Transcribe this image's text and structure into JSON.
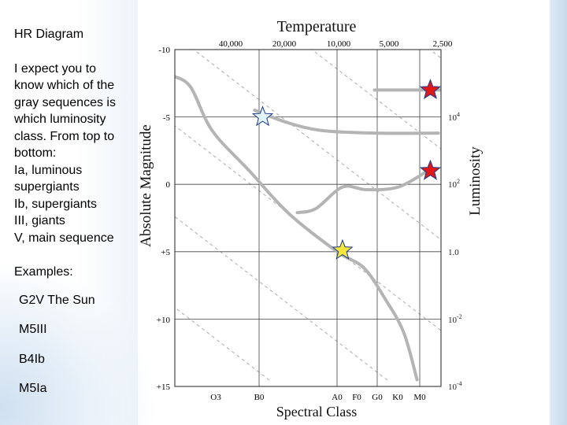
{
  "slide": {
    "title": "HR Diagram",
    "body_lines": [
      "I expect you to",
      "know which of the",
      "gray sequences is",
      "which luminosity",
      "class. From top to",
      "bottom:",
      "Ia, luminous",
      "supergiants",
      "Ib, supergiants",
      "III, giants",
      "V, main sequence"
    ],
    "examples_label": "Examples:",
    "examples": [
      "G2V The Sun",
      "M5III",
      "B4Ib",
      "M5Ia"
    ]
  },
  "chart_data": {
    "type": "scatter",
    "title": "Temperature",
    "xlabel": "Spectral Class",
    "ylabel": "Absolute Magnitude",
    "y2label": "Luminosity",
    "spectral_classes": [
      "O3",
      "B0",
      "A0",
      "F0",
      "G0",
      "K0",
      "M0"
    ],
    "temperature_ticks": [
      "40,000",
      "20,000",
      "10,000",
      "5,000",
      "2,500"
    ],
    "magnitude_ticks": [
      "-10",
      "-5",
      "0",
      "+5",
      "+10",
      "+15"
    ],
    "luminosity_ticks": [
      {
        "base": "10",
        "exp": "4"
      },
      {
        "base": "10",
        "exp": "2"
      },
      {
        "base": "1.0",
        "exp": ""
      },
      {
        "base": "10",
        "exp": "-2"
      },
      {
        "base": "10",
        "exp": "-4"
      }
    ],
    "ylim": [
      -10,
      15
    ],
    "sequences": [
      {
        "class": "Ia",
        "points": [
          [
            0.75,
            -7.0
          ],
          [
            1.0,
            -7.0
          ]
        ]
      },
      {
        "class": "Ib",
        "points": [
          [
            0.3,
            -5.5
          ],
          [
            0.42,
            -4.6
          ],
          [
            0.55,
            -4.0
          ],
          [
            0.75,
            -3.8
          ],
          [
            0.99,
            -3.8
          ]
        ]
      },
      {
        "class": "III",
        "points": [
          [
            0.46,
            2.1
          ],
          [
            0.53,
            1.8
          ],
          [
            0.63,
            0.2
          ],
          [
            0.72,
            0.4
          ],
          [
            0.84,
            0.2
          ],
          [
            0.95,
            -1.0
          ]
        ]
      },
      {
        "class": "V",
        "points": [
          [
            0.0,
            -8.0
          ],
          [
            0.06,
            -7.2
          ],
          [
            0.14,
            -4.0
          ],
          [
            0.28,
            -1.0
          ],
          [
            0.43,
            2.2
          ],
          [
            0.61,
            5.0
          ],
          [
            0.71,
            6.2
          ],
          [
            0.79,
            8.5
          ],
          [
            0.86,
            11.0
          ],
          [
            0.91,
            14.5
          ]
        ]
      }
    ],
    "stars": [
      {
        "label": "G2V The Sun",
        "xf": 0.63,
        "mag": 4.9,
        "color": "#f4e63a"
      },
      {
        "label": "M5III",
        "xf": 0.96,
        "mag": -1.0,
        "color": "#e01818"
      },
      {
        "label": "B4Ib",
        "xf": 0.33,
        "mag": -5.0,
        "color": "#e2f3fb"
      },
      {
        "label": "M5Ia",
        "xf": 0.96,
        "mag": -7.0,
        "color": "#e01818"
      }
    ]
  }
}
